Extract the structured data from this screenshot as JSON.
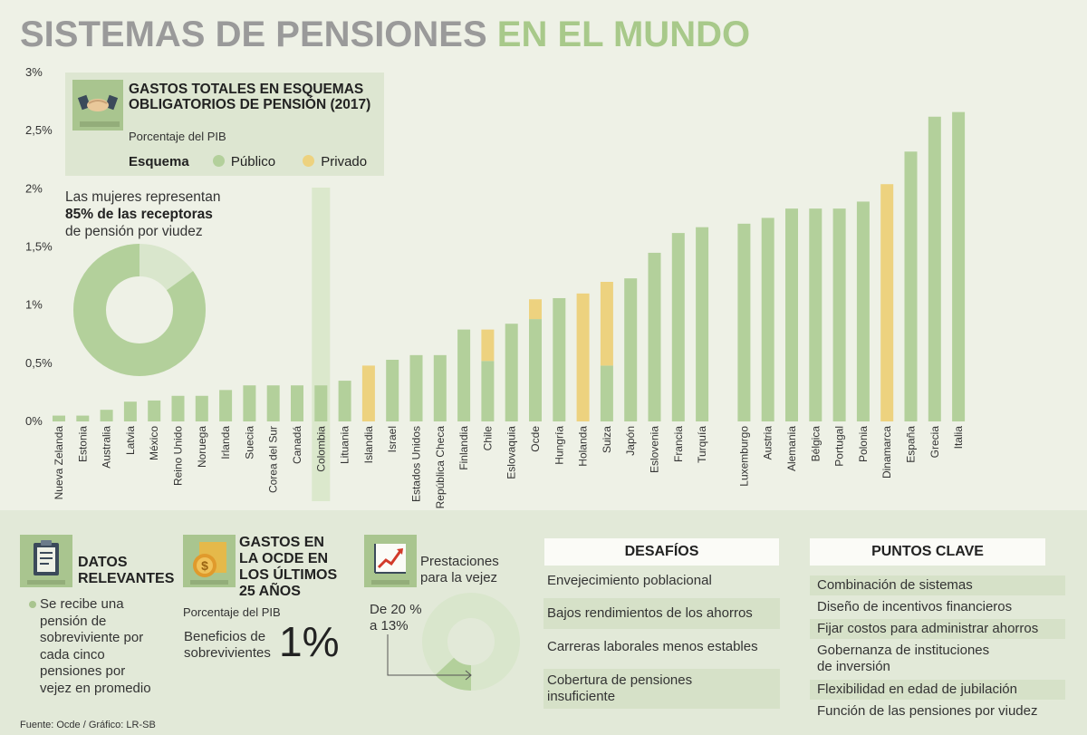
{
  "header": {
    "title_part1": "SISTEMAS DE PENSIONES",
    "title_part2": "EN EL MUNDO"
  },
  "colors": {
    "publico": "#b3d09b",
    "privado": "#edd27f",
    "accent": "#a9c58f",
    "gray_title": "#9a9a9a"
  },
  "chart_data": {
    "type": "bar",
    "title": "GASTOS TOTALES EN ESQUEMAS OBLIGATORIOS DE PENSIÓN (2017)",
    "subtitle": "Porcentaje del PIB",
    "legend_label": "Esquema",
    "series_names": [
      "Público",
      "Privado"
    ],
    "yticks": [
      "0%",
      "0,5%",
      "1%",
      "1,5%",
      "2%",
      "2,5%",
      "3%"
    ],
    "ylim": [
      0,
      3
    ],
    "highlight": "Colombia",
    "categories": [
      "Nueva Zelanda",
      "Estonia",
      "Australia",
      "Latvia",
      "México",
      "Reino Unido",
      "Noruega",
      "Irlanda",
      "Suecia",
      "Corea del Sur",
      "Canadá",
      "Colombia",
      "Lituania",
      "Islandia",
      "Israel",
      "Estados Unidos",
      "República Checa",
      "Finlandia",
      "Chile",
      "Eslovaquia",
      "Ocde",
      "Hungría",
      "Holanda",
      "Suiza",
      "Japón",
      "Eslovenia",
      "Francia",
      "Turquía",
      "Luxemburgo",
      "Austria",
      "Alemania",
      "Bélgica",
      "Portugal",
      "Polonia",
      "Dinamarca",
      "España",
      "Grecia",
      "Italia"
    ],
    "publico": [
      0.05,
      0.05,
      0.1,
      0.17,
      0.18,
      0.22,
      0.22,
      0.27,
      0.31,
      0.31,
      0.31,
      0.31,
      0.35,
      0,
      0.53,
      0.57,
      0.57,
      0.79,
      0.52,
      0.84,
      0.88,
      1.06,
      0,
      0.48,
      1.23,
      1.45,
      1.62,
      1.67,
      1.7,
      1.75,
      1.83,
      1.83,
      1.83,
      1.89,
      0,
      2.32,
      2.62,
      2.66
    ],
    "privado": [
      0,
      0,
      0,
      0,
      0,
      0,
      0,
      0,
      0,
      0,
      0,
      0,
      0,
      0.48,
      0,
      0,
      0,
      0,
      0.27,
      0,
      0.17,
      0,
      1.1,
      0.72,
      0,
      0,
      0,
      0,
      0,
      0,
      0,
      0,
      0,
      0,
      2.04,
      0,
      0,
      0
    ]
  },
  "donut_note": {
    "line1": "Las mujeres representan",
    "line2": "85% de las receptoras",
    "line3": "de pensión por viudez",
    "value": 85
  },
  "datos": {
    "title_line1": "DATOS",
    "title_line2": "RELEVANTES",
    "text": "Se recibe una pensión de sobreviviente por cada cinco pensiones por vejez en promedio"
  },
  "gastos": {
    "title_line1": "GASTOS EN",
    "title_line2": "LA OCDE EN",
    "title_line3": "LOS ÚLTIMOS",
    "title_line4": "25 AÑOS",
    "sub": "Porcentaje del PIB",
    "benef_line1": "Beneficios de",
    "benef_line2": "sobrevivientes",
    "value": "1%"
  },
  "prestaciones": {
    "line1": "Prestaciones",
    "line2": "para la vejez",
    "from_line1": "De 20 %",
    "from_line2": "a 13%",
    "from": 20,
    "to": 13
  },
  "desafios": {
    "title": "DESAFÍOS",
    "items": [
      "Envejecimiento poblacional",
      "Bajos rendimientos de los ahorros",
      "Carreras laborales menos estables",
      "Cobertura de pensiones",
      "insuficiente"
    ]
  },
  "puntos": {
    "title": "PUNTOS CLAVE",
    "items": [
      "Combinación de sistemas",
      "Diseño de incentivos financieros",
      "Fijar costos para administrar ahorros",
      "Gobernanza de instituciones",
      "de inversión",
      "Flexibilidad en edad de jubilación",
      "Función de las pensiones por viudez"
    ]
  },
  "source": "Fuente: Ocde / Gráfico: LR-SB"
}
